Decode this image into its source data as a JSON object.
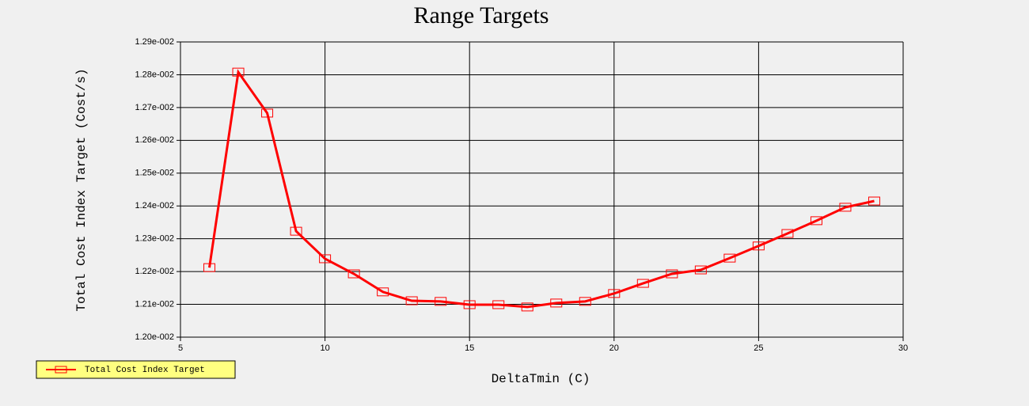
{
  "chart_data": {
    "type": "line",
    "title": "Range Targets",
    "x_label": "DeltaTmin (C)",
    "y_label": "Total Cost Index Target (Cost/s)",
    "x": [
      6,
      7,
      8,
      9,
      10,
      11,
      12,
      13,
      14,
      15,
      16,
      17,
      18,
      19,
      20,
      21,
      22,
      23,
      24,
      25,
      26,
      27,
      28,
      29
    ],
    "series": [
      {
        "name": "Total Cost Index Target",
        "color": "#ff0000",
        "values": [
          0.012212,
          0.012808,
          0.012683,
          0.012323,
          0.012239,
          0.012193,
          0.012138,
          0.012111,
          0.012109,
          0.012099,
          0.012099,
          0.012092,
          0.012104,
          0.012109,
          0.012133,
          0.012164,
          0.012193,
          0.012205,
          0.012241,
          0.012278,
          0.012316,
          0.012355,
          0.012396,
          0.012415
        ]
      }
    ],
    "xlim": [
      5,
      30
    ],
    "xticks": [
      5,
      10,
      15,
      20,
      25,
      30
    ],
    "ylim": [
      0.012,
      0.0129
    ],
    "yticks": [
      {
        "value": 0.012,
        "label": "1.20e-002"
      },
      {
        "value": 0.0121,
        "label": "1.21e-002"
      },
      {
        "value": 0.0122,
        "label": "1.22e-002"
      },
      {
        "value": 0.0123,
        "label": "1.23e-002"
      },
      {
        "value": 0.0124,
        "label": "1.24e-002"
      },
      {
        "value": 0.0125,
        "label": "1.25e-002"
      },
      {
        "value": 0.0126,
        "label": "1.26e-002"
      },
      {
        "value": 0.0127,
        "label": "1.27e-002"
      },
      {
        "value": 0.0128,
        "label": "1.28e-002"
      },
      {
        "value": 0.0129,
        "label": "1.29e-002"
      }
    ],
    "grid": true,
    "legend_position": "bottom-left",
    "legend_color": "#ffff80"
  }
}
